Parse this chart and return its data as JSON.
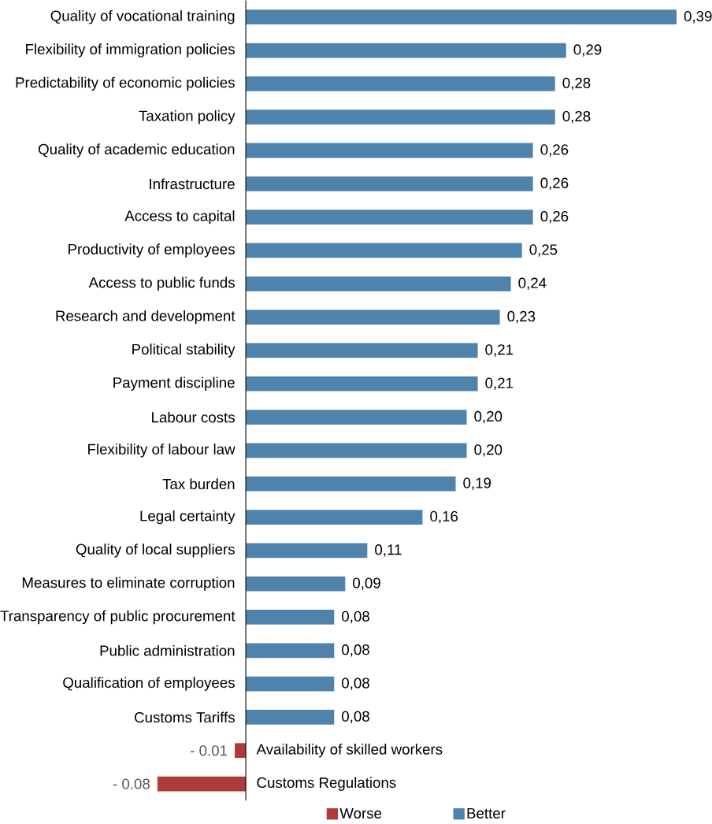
{
  "chart_data": {
    "type": "bar",
    "orientation": "horizontal",
    "categories": [
      "Quality of vocational training",
      "Flexibility of immigration policies",
      "Predictability of economic policies",
      "Taxation policy",
      "Quality of academic education",
      "Infrastructure",
      "Access to capital",
      "Productivity of employees",
      "Access to public funds",
      "Research and development",
      "Political stability",
      "Payment discipline",
      "Labour costs",
      "Flexibility of labour law",
      "Tax burden",
      "Legal certainty",
      "Quality of local suppliers",
      "Measures to eliminate corruption",
      "Transparency of public procurement",
      "Public administration",
      "Qualification of employees",
      "Customs Tariffs",
      "Availability of skilled workers",
      "Customs Regulations"
    ],
    "series": [
      {
        "name": "Worse",
        "color": "#b03a3a",
        "values": [
          null,
          null,
          null,
          null,
          null,
          null,
          null,
          null,
          null,
          null,
          null,
          null,
          null,
          null,
          null,
          null,
          null,
          null,
          null,
          null,
          null,
          null,
          -0.01,
          -0.08
        ],
        "value_labels": [
          null,
          null,
          null,
          null,
          null,
          null,
          null,
          null,
          null,
          null,
          null,
          null,
          null,
          null,
          null,
          null,
          null,
          null,
          null,
          null,
          null,
          null,
          "- 0.01",
          "- 0.08"
        ]
      },
      {
        "name": "Better",
        "color": "#5083ab",
        "values": [
          0.39,
          0.29,
          0.28,
          0.28,
          0.26,
          0.26,
          0.26,
          0.25,
          0.24,
          0.23,
          0.21,
          0.21,
          0.2,
          0.2,
          0.19,
          0.16,
          0.11,
          0.09,
          0.08,
          0.08,
          0.08,
          0.08,
          null,
          null
        ],
        "value_labels": [
          "0,39",
          "0,29",
          "0,28",
          "0,28",
          "0,26",
          "0,26",
          "0,26",
          "0,25",
          "0,24",
          "0,23",
          "0,21",
          "0,21",
          "0,20",
          "0,20",
          "0,19",
          "0,16",
          "0,11",
          "0,09",
          "0,08",
          "0,08",
          "0,08",
          "0,08",
          null,
          null
        ]
      }
    ],
    "legend": "bottom"
  }
}
